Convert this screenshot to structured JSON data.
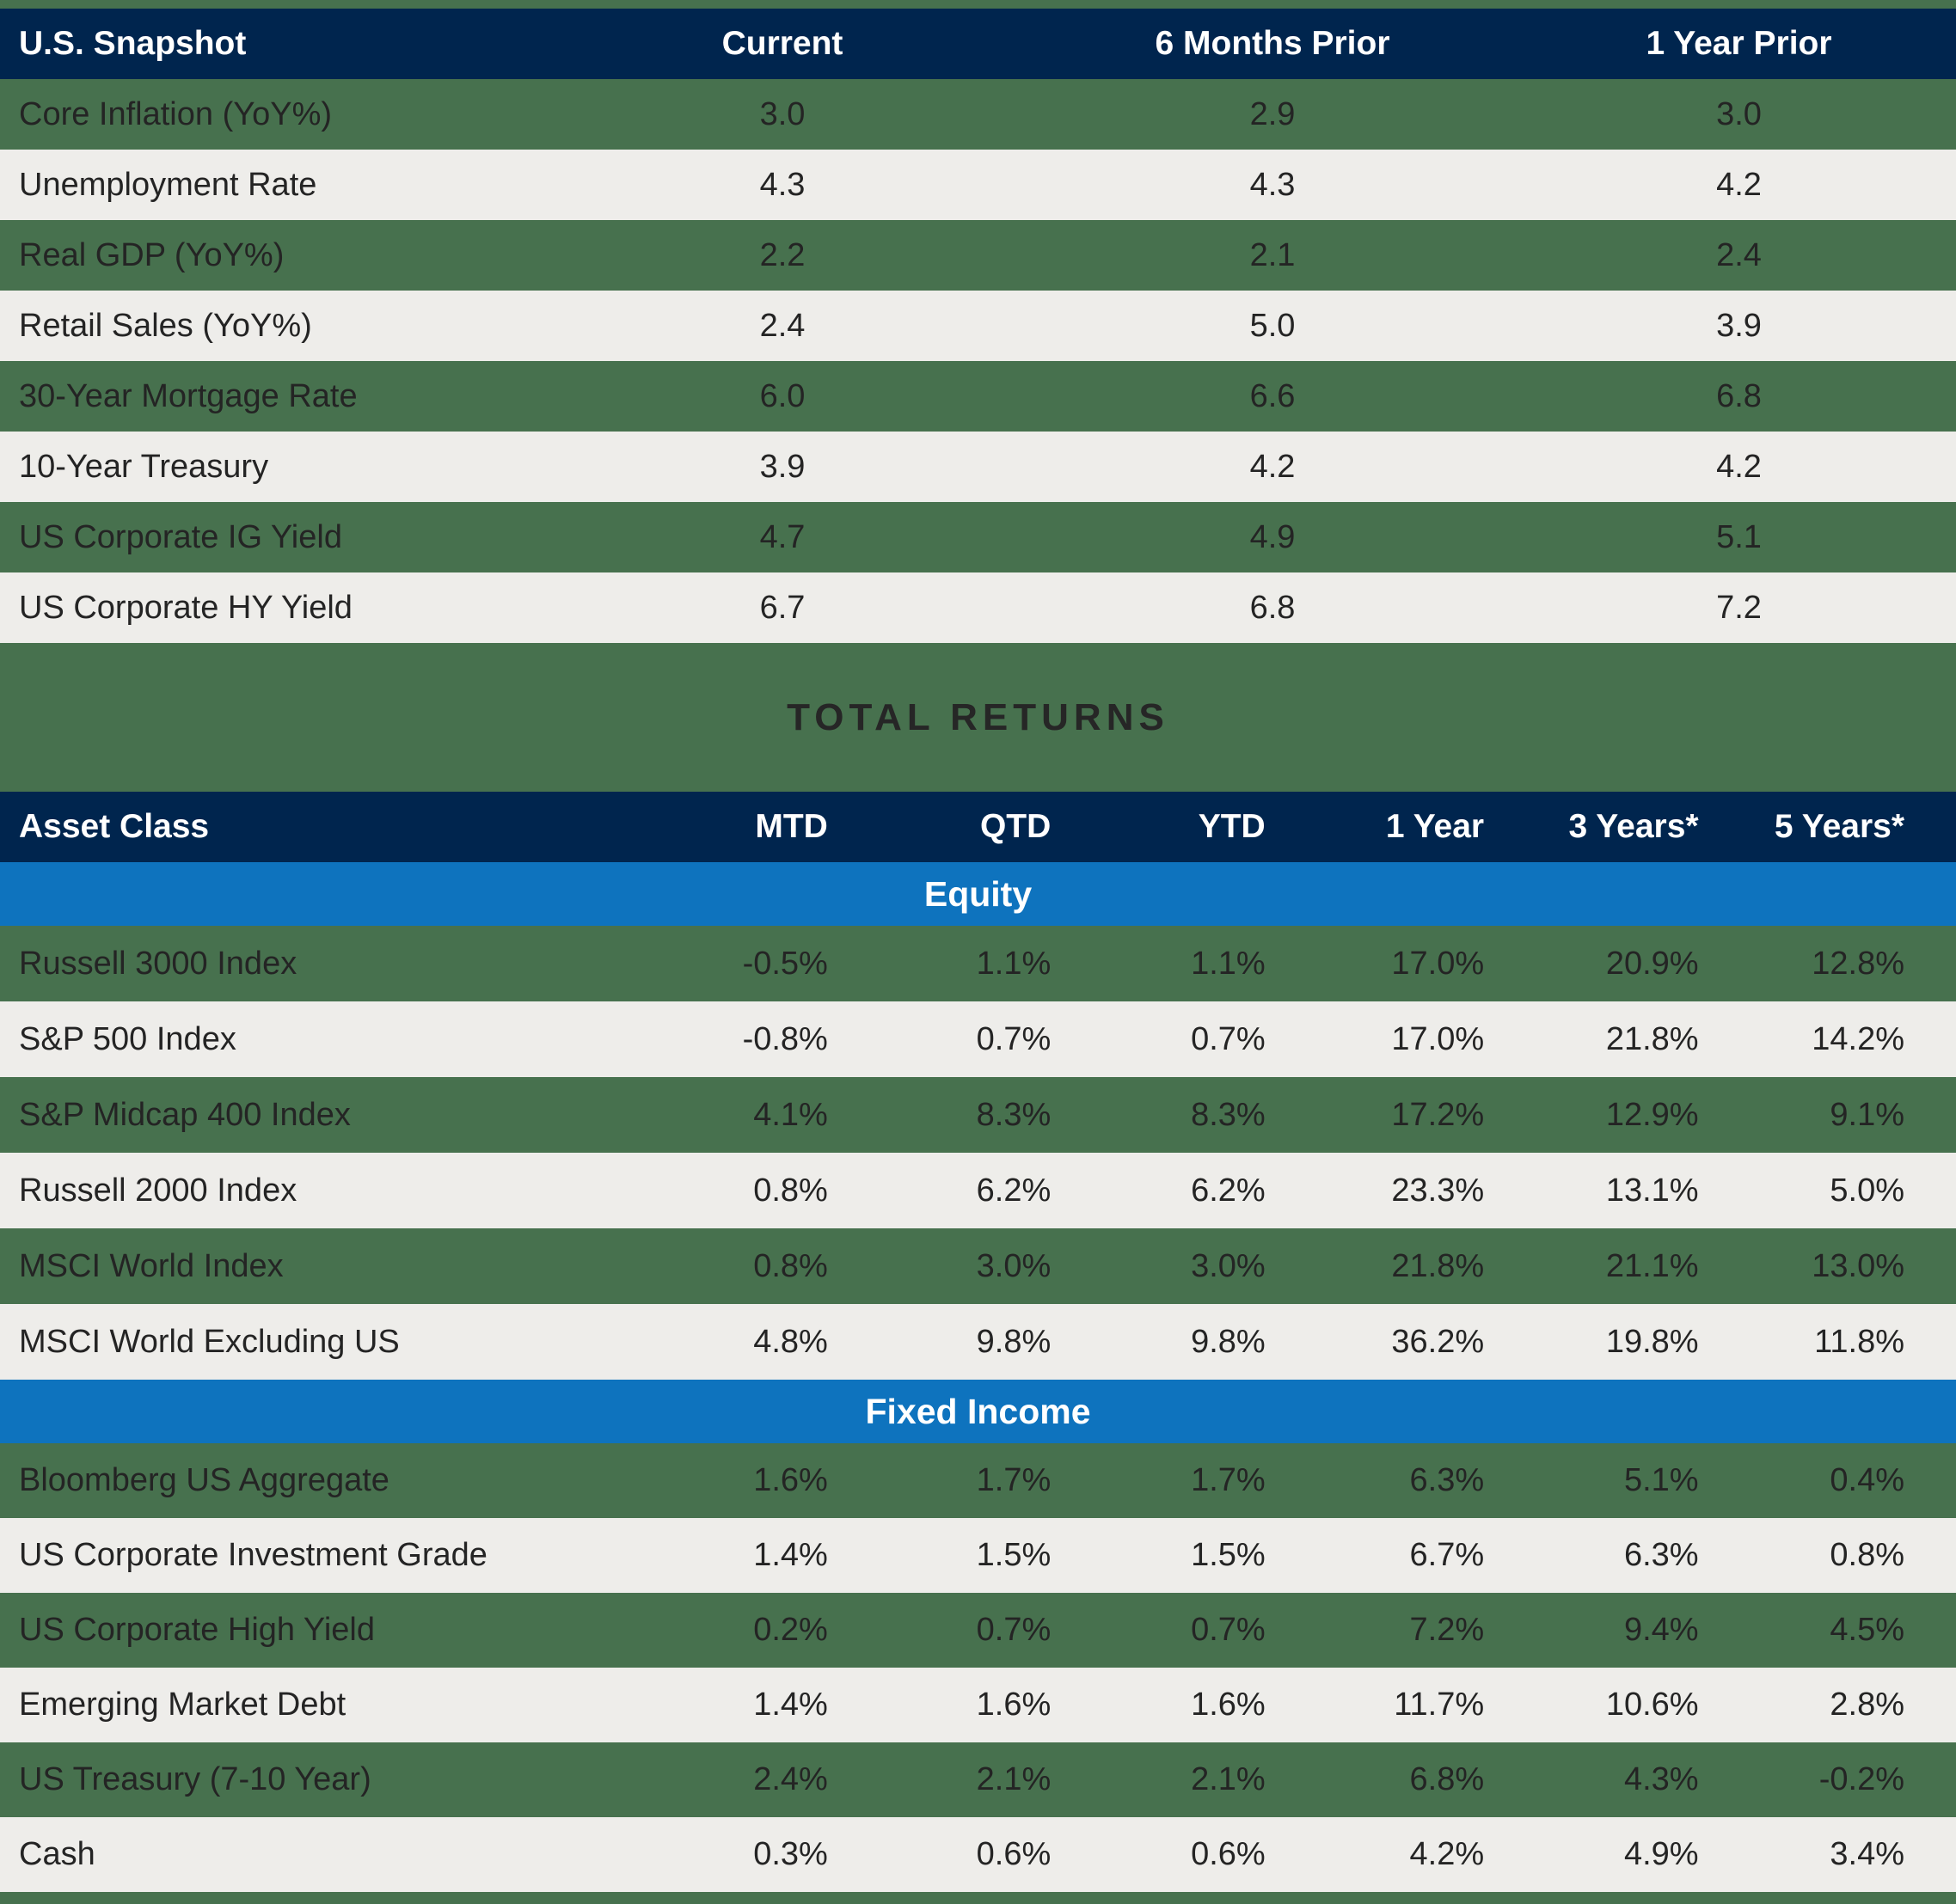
{
  "colors": {
    "background_green": "#47714E",
    "header_navy": "#00254E",
    "section_blue": "#0E73BE",
    "row_gray": "#EEEDEA",
    "text_dark": "#242424",
    "text_white": "#FFFFFF"
  },
  "snapshot": {
    "title": "U.S. Snapshot",
    "columns": [
      "Current",
      "6 Months Prior",
      "1 Year Prior"
    ],
    "rows": [
      {
        "label": "Core Inflation (YoY%)",
        "values": [
          "3.0",
          "2.9",
          "3.0"
        ]
      },
      {
        "label": "Unemployment Rate",
        "values": [
          "4.3",
          "4.3",
          "4.2"
        ]
      },
      {
        "label": "Real GDP (YoY%)",
        "values": [
          "2.2",
          "2.1",
          "2.4"
        ]
      },
      {
        "label": "Retail Sales (YoY%)",
        "values": [
          "2.4",
          "5.0",
          "3.9"
        ]
      },
      {
        "label": "30-Year Mortgage Rate",
        "values": [
          "6.0",
          "6.6",
          "6.8"
        ]
      },
      {
        "label": "10-Year Treasury",
        "values": [
          "3.9",
          "4.2",
          "4.2"
        ]
      },
      {
        "label": "US Corporate IG Yield",
        "values": [
          "4.7",
          "4.9",
          "5.1"
        ]
      },
      {
        "label": "US Corporate HY Yield",
        "values": [
          "6.7",
          "6.8",
          "7.2"
        ]
      }
    ]
  },
  "returns": {
    "title": "TOTAL RETURNS",
    "asset_class_label": "Asset Class",
    "columns": [
      "MTD",
      "QTD",
      "YTD",
      "1 Year",
      "3 Years*",
      "5 Years*"
    ],
    "equity": {
      "label": "Equity",
      "rows": [
        {
          "label": "Russell 3000 Index",
          "values": [
            "-0.5%",
            "1.1%",
            "1.1%",
            "17.0%",
            "20.9%",
            "12.8%"
          ]
        },
        {
          "label": "S&P 500 Index",
          "values": [
            "-0.8%",
            "0.7%",
            "0.7%",
            "17.0%",
            "21.8%",
            "14.2%"
          ]
        },
        {
          "label": "S&P Midcap 400 Index",
          "values": [
            "4.1%",
            "8.3%",
            "8.3%",
            "17.2%",
            "12.9%",
            "9.1%"
          ]
        },
        {
          "label": "Russell 2000 Index",
          "values": [
            "0.8%",
            "6.2%",
            "6.2%",
            "23.3%",
            "13.1%",
            "5.0%"
          ]
        },
        {
          "label": "MSCI World Index",
          "values": [
            "0.8%",
            "3.0%",
            "3.0%",
            "21.8%",
            "21.1%",
            "13.0%"
          ]
        },
        {
          "label": "MSCI World Excluding US",
          "values": [
            "4.8%",
            "9.8%",
            "9.8%",
            "36.2%",
            "19.8%",
            "11.8%"
          ]
        }
      ]
    },
    "fixed_income": {
      "label": "Fixed Income",
      "rows": [
        {
          "label": "Bloomberg US Aggregate",
          "values": [
            "1.6%",
            "1.7%",
            "1.7%",
            "6.3%",
            "5.1%",
            "0.4%"
          ]
        },
        {
          "label": "US Corporate Investment Grade",
          "values": [
            "1.4%",
            "1.5%",
            "1.5%",
            "6.7%",
            "6.3%",
            "0.8%"
          ]
        },
        {
          "label": "US Corporate High Yield",
          "values": [
            "0.2%",
            "0.7%",
            "0.7%",
            "7.2%",
            "9.4%",
            "4.5%"
          ]
        },
        {
          "label": "Emerging Market Debt",
          "values": [
            "1.4%",
            "1.6%",
            "1.6%",
            "11.7%",
            "10.6%",
            "2.8%"
          ]
        },
        {
          "label": "US Treasury (7-10 Year)",
          "values": [
            "2.4%",
            "2.1%",
            "2.1%",
            "6.8%",
            "4.3%",
            "-0.2%"
          ]
        },
        {
          "label": "Cash",
          "values": [
            "0.3%",
            "0.6%",
            "0.6%",
            "4.2%",
            "4.9%",
            "3.4%"
          ]
        }
      ]
    }
  }
}
